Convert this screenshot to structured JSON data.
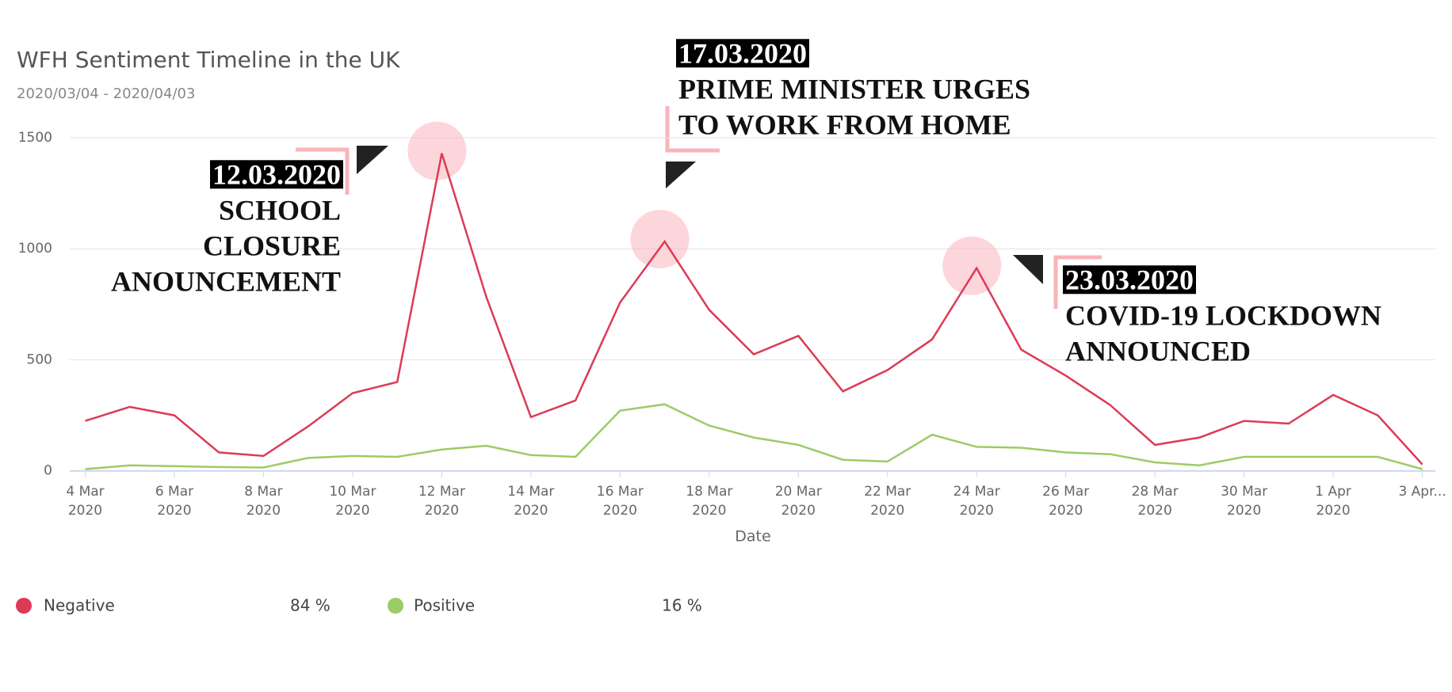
{
  "chart_data": {
    "type": "line",
    "title": "WFH Sentiment Timeline in the UK",
    "subtitle": "2020/03/04 - 2020/04/03",
    "x_label": "Date",
    "categories": [
      "4 Mar 2020",
      null,
      "6 Mar 2020",
      null,
      "8 Mar 2020",
      null,
      "10 Mar 2020",
      null,
      "12 Mar 2020",
      null,
      "14 Mar 2020",
      null,
      "16 Mar 2020",
      null,
      "18 Mar 2020",
      null,
      "20 Mar 2020",
      null,
      "22 Mar 2020",
      null,
      "24 Mar 2020",
      null,
      "26 Mar 2020",
      null,
      "28 Mar 2020",
      null,
      "30 Mar 2020",
      null,
      "1 Apr 2020",
      null,
      "3 Apr..."
    ],
    "series": [
      {
        "name": "Negative",
        "color": "#dc3b55",
        "share": 84,
        "share_label": "84 %",
        "values": [
          225,
          288,
          250,
          83,
          67,
          200,
          350,
          400,
          1430,
          783,
          242,
          317,
          758,
          1033,
          725,
          525,
          608,
          358,
          454,
          592,
          913,
          546,
          429,
          296,
          117,
          150,
          225,
          213,
          342,
          250,
          29
        ]
      },
      {
        "name": "Positive",
        "color": "#9ccc65",
        "share": 16,
        "share_label": "16 %",
        "values": [
          8,
          25,
          21,
          17,
          15,
          58,
          67,
          63,
          96,
          113,
          71,
          63,
          271,
          300,
          204,
          150,
          117,
          50,
          42,
          163,
          108,
          104,
          83,
          75,
          38,
          25,
          63,
          63,
          63,
          63,
          8
        ]
      }
    ],
    "ylim": [
      0,
      1500
    ],
    "yticks": [
      0,
      500,
      1000,
      1500
    ],
    "grid": true,
    "annotations": [
      {
        "date": "12.03.2020",
        "lines": [
          "SCHOOL",
          "CLOSURE",
          "ANOUNCEMENT"
        ]
      },
      {
        "date": "17.03.2020",
        "lines": [
          "PRIME MINISTER URGES",
          "TO WORK FROM HOME"
        ]
      },
      {
        "date": "23.03.2020",
        "lines": [
          "COVID-19 LOCKDOWN",
          "ANNOUNCED"
        ]
      }
    ]
  }
}
